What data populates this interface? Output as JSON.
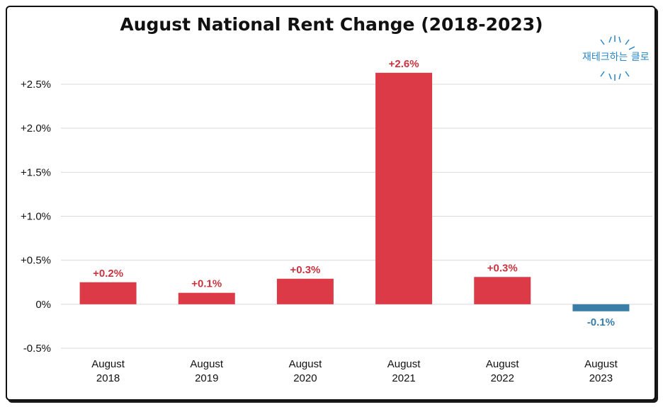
{
  "chart_data": {
    "type": "bar",
    "title": "August National Rent Change (2018-2023)",
    "xlabel": "",
    "ylabel": "",
    "categories": [
      [
        "August",
        "2018"
      ],
      [
        "August",
        "2019"
      ],
      [
        "August",
        "2020"
      ],
      [
        "August",
        "2021"
      ],
      [
        "August",
        "2022"
      ],
      [
        "August",
        "2023"
      ]
    ],
    "values": [
      0.25,
      0.13,
      0.29,
      2.63,
      0.31,
      -0.08
    ],
    "data_labels": [
      "+0.2%",
      "+0.1%",
      "+0.3%",
      "+2.6%",
      "+0.3%",
      "-0.1%"
    ],
    "ylim": [
      -0.5,
      2.75
    ],
    "yticks": [
      -0.5,
      0,
      0.5,
      1.0,
      1.5,
      2.0,
      2.5
    ],
    "ytick_labels": [
      "-0.5%",
      "0%",
      "+0.5%",
      "+1.0%",
      "+1.5%",
      "+2.0%",
      "+2.5%"
    ],
    "grid": true,
    "colors": {
      "positive": "#dc3a47",
      "negative": "#3a7ea8",
      "positive_label": "#c8343f",
      "negative_label": "#3a7ea8",
      "grid": "#d9d9d9"
    }
  },
  "watermark": {
    "text": "재테크하는 클로"
  }
}
